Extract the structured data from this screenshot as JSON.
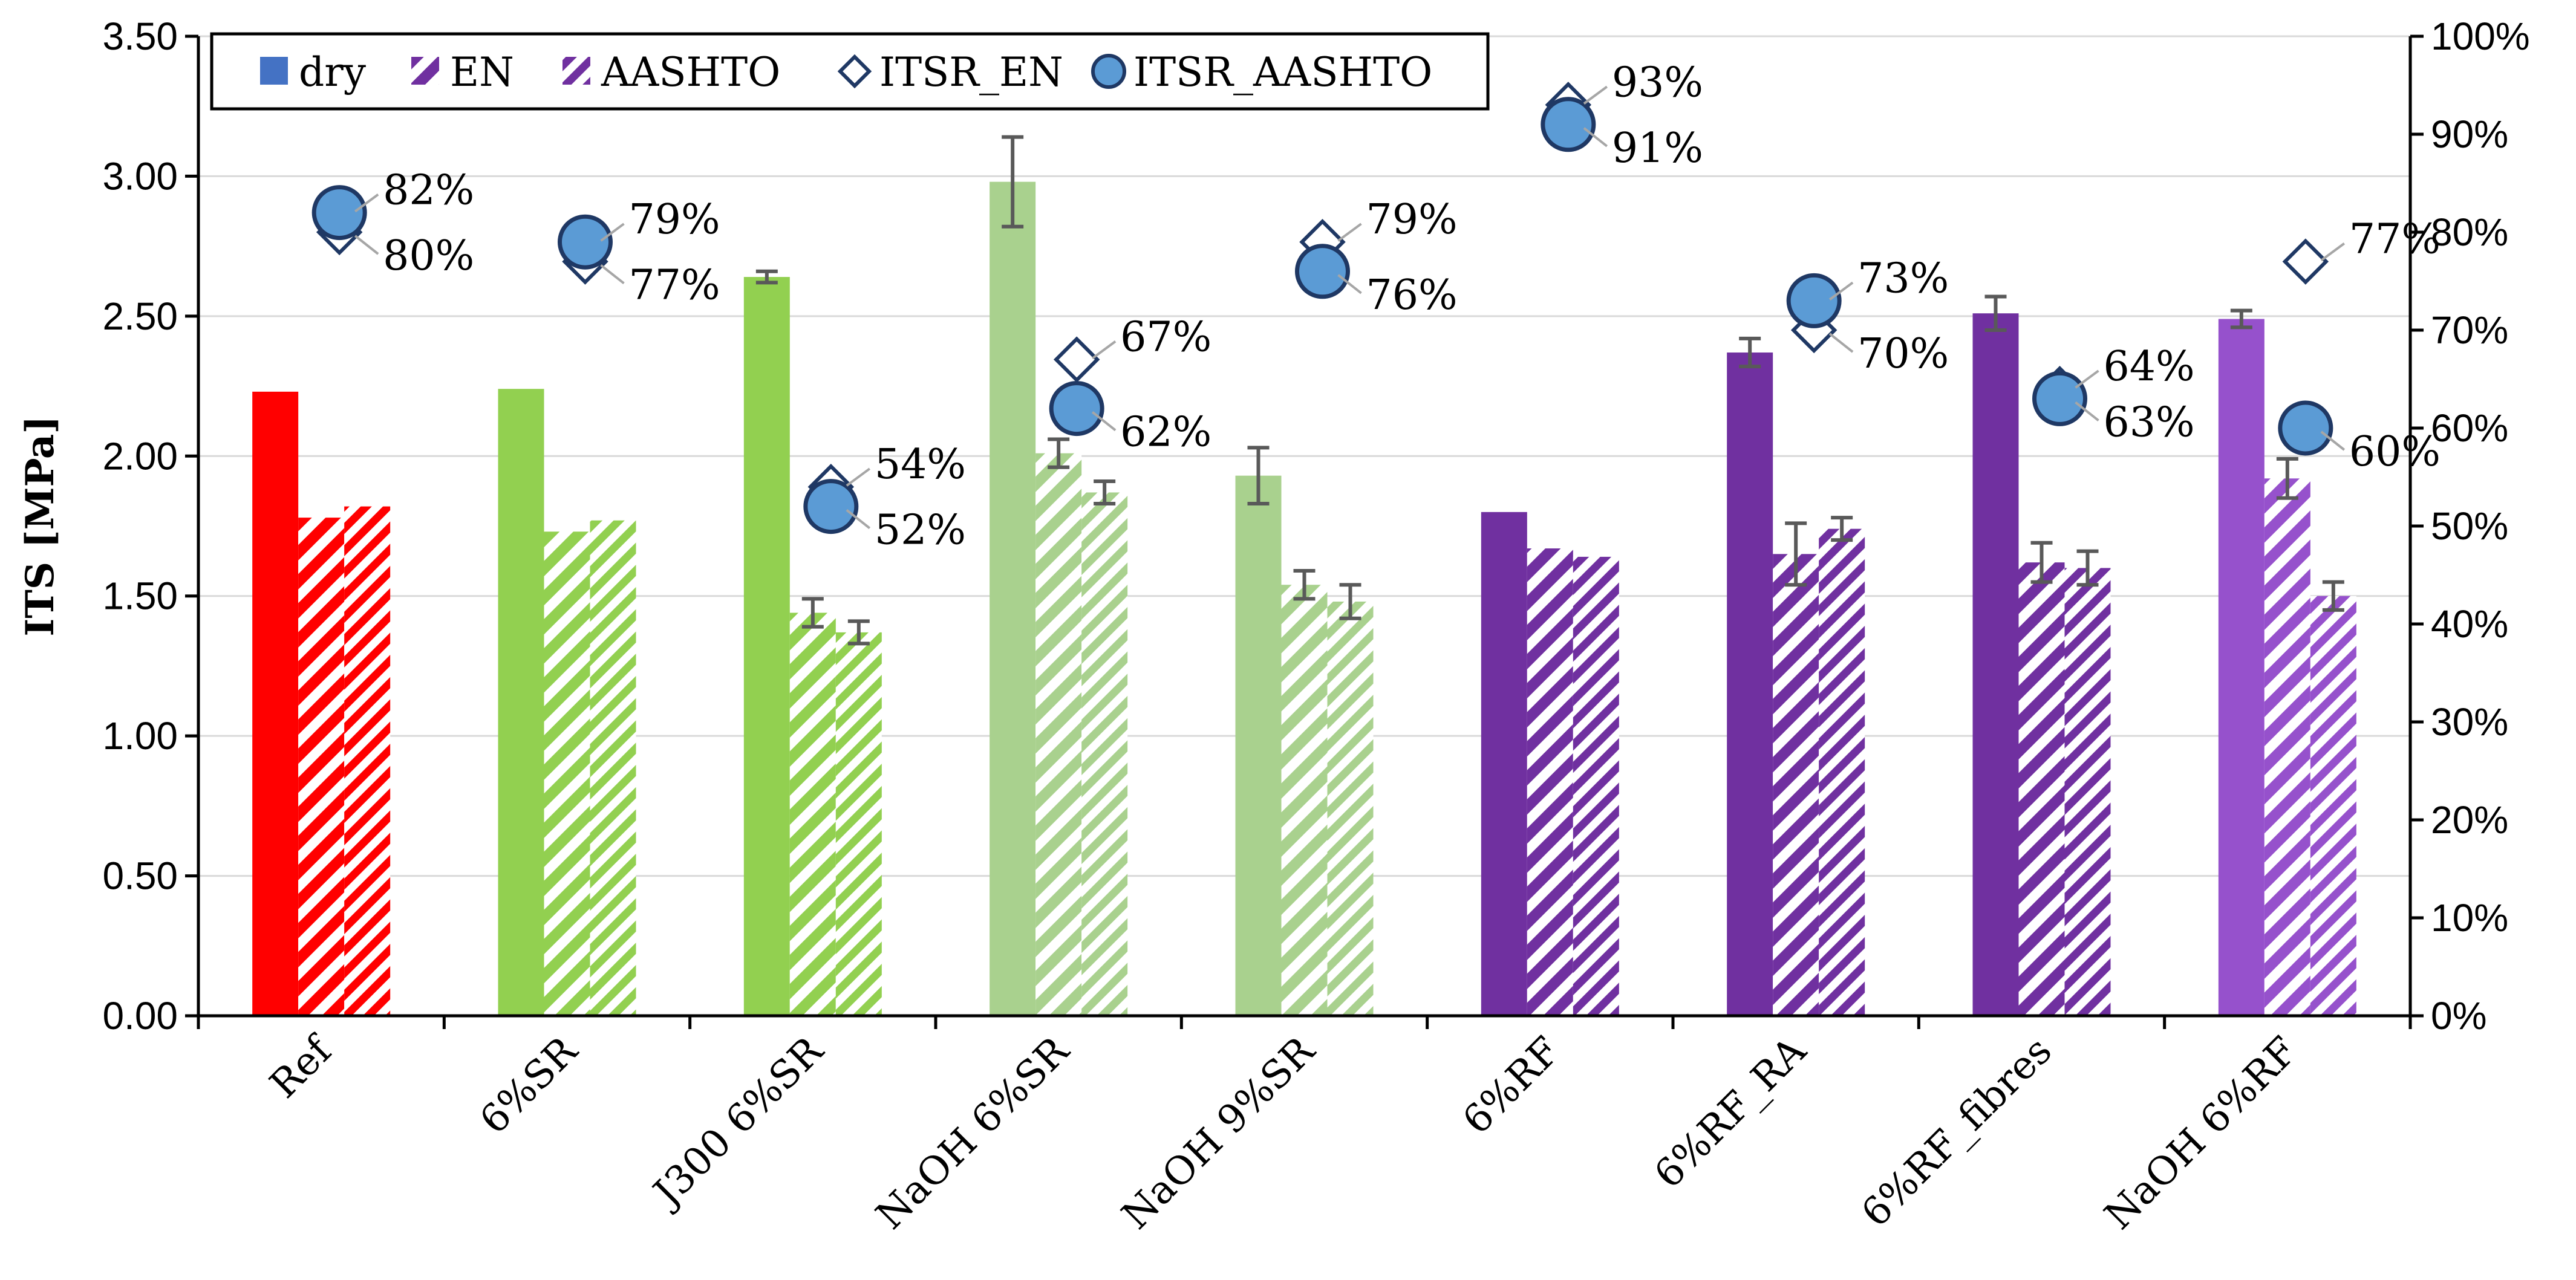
{
  "chart_data": {
    "type": "bar",
    "title": "",
    "xlabel": "",
    "ylabel": "ITS [MPa]",
    "ylim": [
      0,
      3.5
    ],
    "y_ticks": [
      "0.00",
      "0.50",
      "1.00",
      "1.50",
      "2.00",
      "2.50",
      "3.00",
      "3.50"
    ],
    "y2lim": [
      0,
      100
    ],
    "y2_ticks": [
      "0%",
      "10%",
      "20%",
      "30%",
      "40%",
      "50%",
      "60%",
      "70%",
      "80%",
      "90%",
      "100%"
    ],
    "legend_position": "top-left",
    "categories": [
      "Ref",
      "6%SR",
      "J300 6%SR",
      "NaOH 6%SR",
      "NaOH 9%SR",
      "6%RF",
      "6%RF_RA",
      "6%RF_fibres",
      "NaOH 6%RF"
    ],
    "category_colors": [
      "#ff0000",
      "#92d050",
      "#92d050",
      "#a9d18e",
      "#a9d18e",
      "#7030a0",
      "#7030a0",
      "#7030a0",
      "#9651cc"
    ],
    "series": [
      {
        "name": "dry",
        "kind": "bar",
        "fill": "solid",
        "values": [
          2.23,
          2.24,
          2.64,
          2.98,
          1.93,
          1.8,
          2.37,
          2.51,
          2.49
        ],
        "errors": [
          0,
          0,
          0.02,
          0.16,
          0.1,
          0,
          0.05,
          0.06,
          0.03
        ]
      },
      {
        "name": "EN",
        "kind": "bar",
        "fill": "hatched",
        "values": [
          1.78,
          1.73,
          1.44,
          2.01,
          1.54,
          1.67,
          1.65,
          1.62,
          1.92
        ],
        "errors": [
          0,
          0,
          0.05,
          0.05,
          0.05,
          0,
          0.11,
          0.07,
          0.07
        ]
      },
      {
        "name": "AASHTO",
        "kind": "bar",
        "fill": "hatched-dense",
        "values": [
          1.82,
          1.77,
          1.37,
          1.87,
          1.48,
          1.64,
          1.74,
          1.6,
          1.5
        ],
        "errors": [
          0,
          0,
          0.04,
          0.04,
          0.06,
          0,
          0.04,
          0.06,
          0.05
        ]
      },
      {
        "name": "ITSR_EN",
        "kind": "marker",
        "marker": "diamond",
        "axis": "secondary",
        "values": [
          80,
          77,
          54,
          67,
          79,
          93,
          70,
          64,
          77
        ],
        "labels": [
          "80%",
          "77%",
          "54%",
          "67%",
          "79%",
          "93%",
          "70%",
          "64%",
          "77%"
        ]
      },
      {
        "name": "ITSR_AASHTO",
        "kind": "marker",
        "marker": "circle",
        "axis": "secondary",
        "values": [
          82,
          79,
          52,
          62,
          76,
          91,
          73,
          63,
          60
        ],
        "labels": [
          "82%",
          "79%",
          "52%",
          "62%",
          "76%",
          "91%",
          "73%",
          "63%",
          "60%"
        ]
      }
    ],
    "marker_color": "#5b9bd5",
    "marker_edge_color": "#1f3864",
    "legend_swatch_color": "#4472c4",
    "legend_hatch_color": "#7030a0",
    "axis_color": "#000000",
    "gridline_color": "#d9d9d9",
    "errorbar_color": "#595959"
  }
}
